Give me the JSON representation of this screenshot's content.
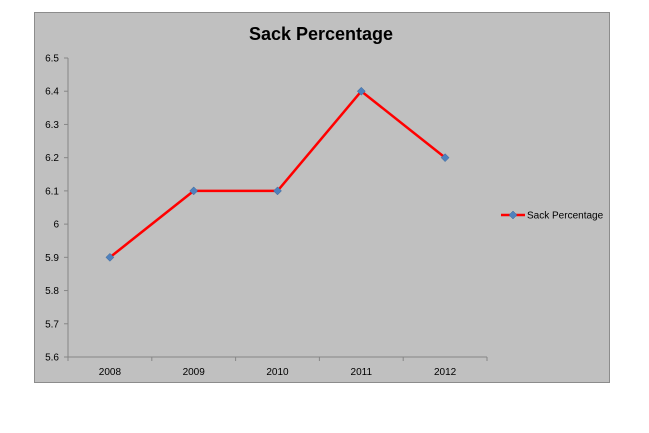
{
  "chart_data": {
    "type": "line",
    "title": "Sack Percentage",
    "xlabel": "",
    "ylabel": "",
    "categories": [
      "2008",
      "2009",
      "2010",
      "2011",
      "2012"
    ],
    "series": [
      {
        "name": "Sack Percentage",
        "values": [
          5.9,
          6.1,
          6.1,
          6.4,
          6.2
        ],
        "color": "#ff0000",
        "marker_color": "#4f81bd",
        "marker": "diamond"
      }
    ],
    "ylim": [
      5.6,
      6.5
    ],
    "ystep": 0.1,
    "y_ticks": [
      "5.6",
      "5.7",
      "5.8",
      "5.9",
      "6",
      "6.1",
      "6.2",
      "6.3",
      "6.4",
      "6.5"
    ],
    "grid": false,
    "legend_position": "right",
    "background_color": "#c0c0c0",
    "axis_color": "#868686"
  }
}
